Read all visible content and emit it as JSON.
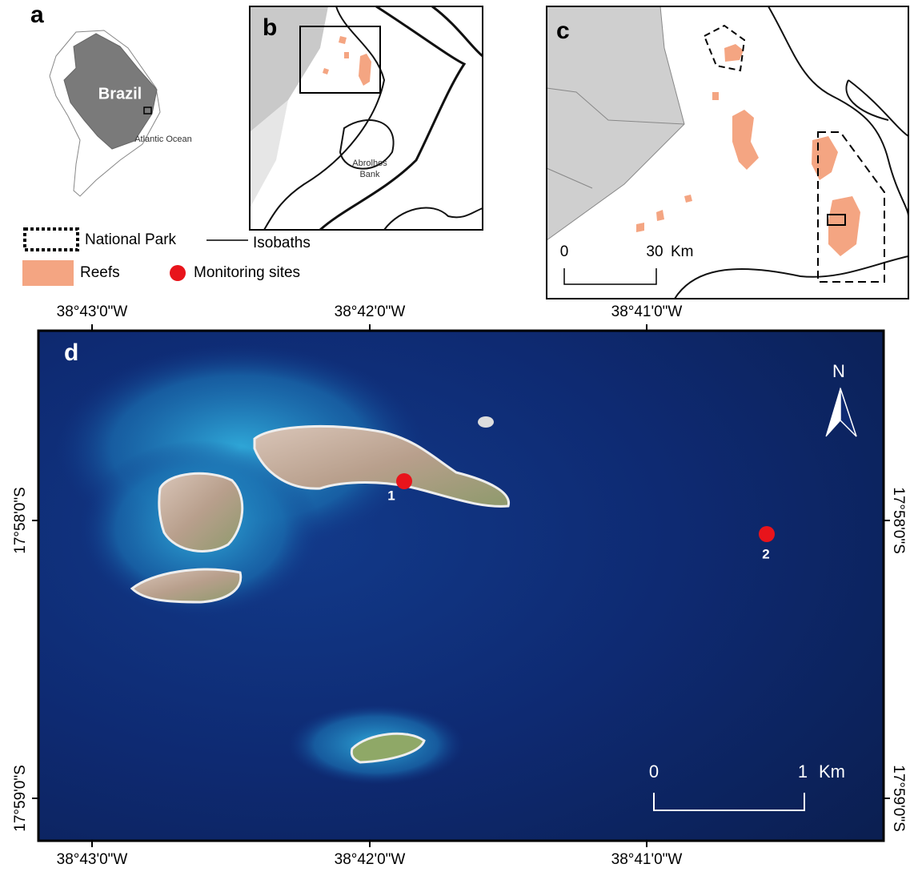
{
  "panels": {
    "a": {
      "label": "a",
      "country": "Brazil",
      "ocean": "Atlantic Ocean"
    },
    "b": {
      "label": "b",
      "bank": [
        "Abrolhos",
        "Bank"
      ]
    },
    "c": {
      "label": "c",
      "scale": {
        "start": 0,
        "end": 30,
        "unit": "Km"
      }
    },
    "d": {
      "label": "d",
      "longitudes": [
        "38°43'0\"W",
        "38°42'0\"W",
        "38°41'0\"W"
      ],
      "latitudes": [
        "17°58'0\"S",
        "17°59'0\"S"
      ],
      "north": "N",
      "sites": [
        "1",
        "2"
      ],
      "scale": {
        "start": 0,
        "end": 1,
        "unit": "Km"
      }
    }
  },
  "legend": {
    "park": "National Park",
    "isobaths": "Isobaths",
    "reefs": "Reefs",
    "sites": "Monitoring sites"
  }
}
